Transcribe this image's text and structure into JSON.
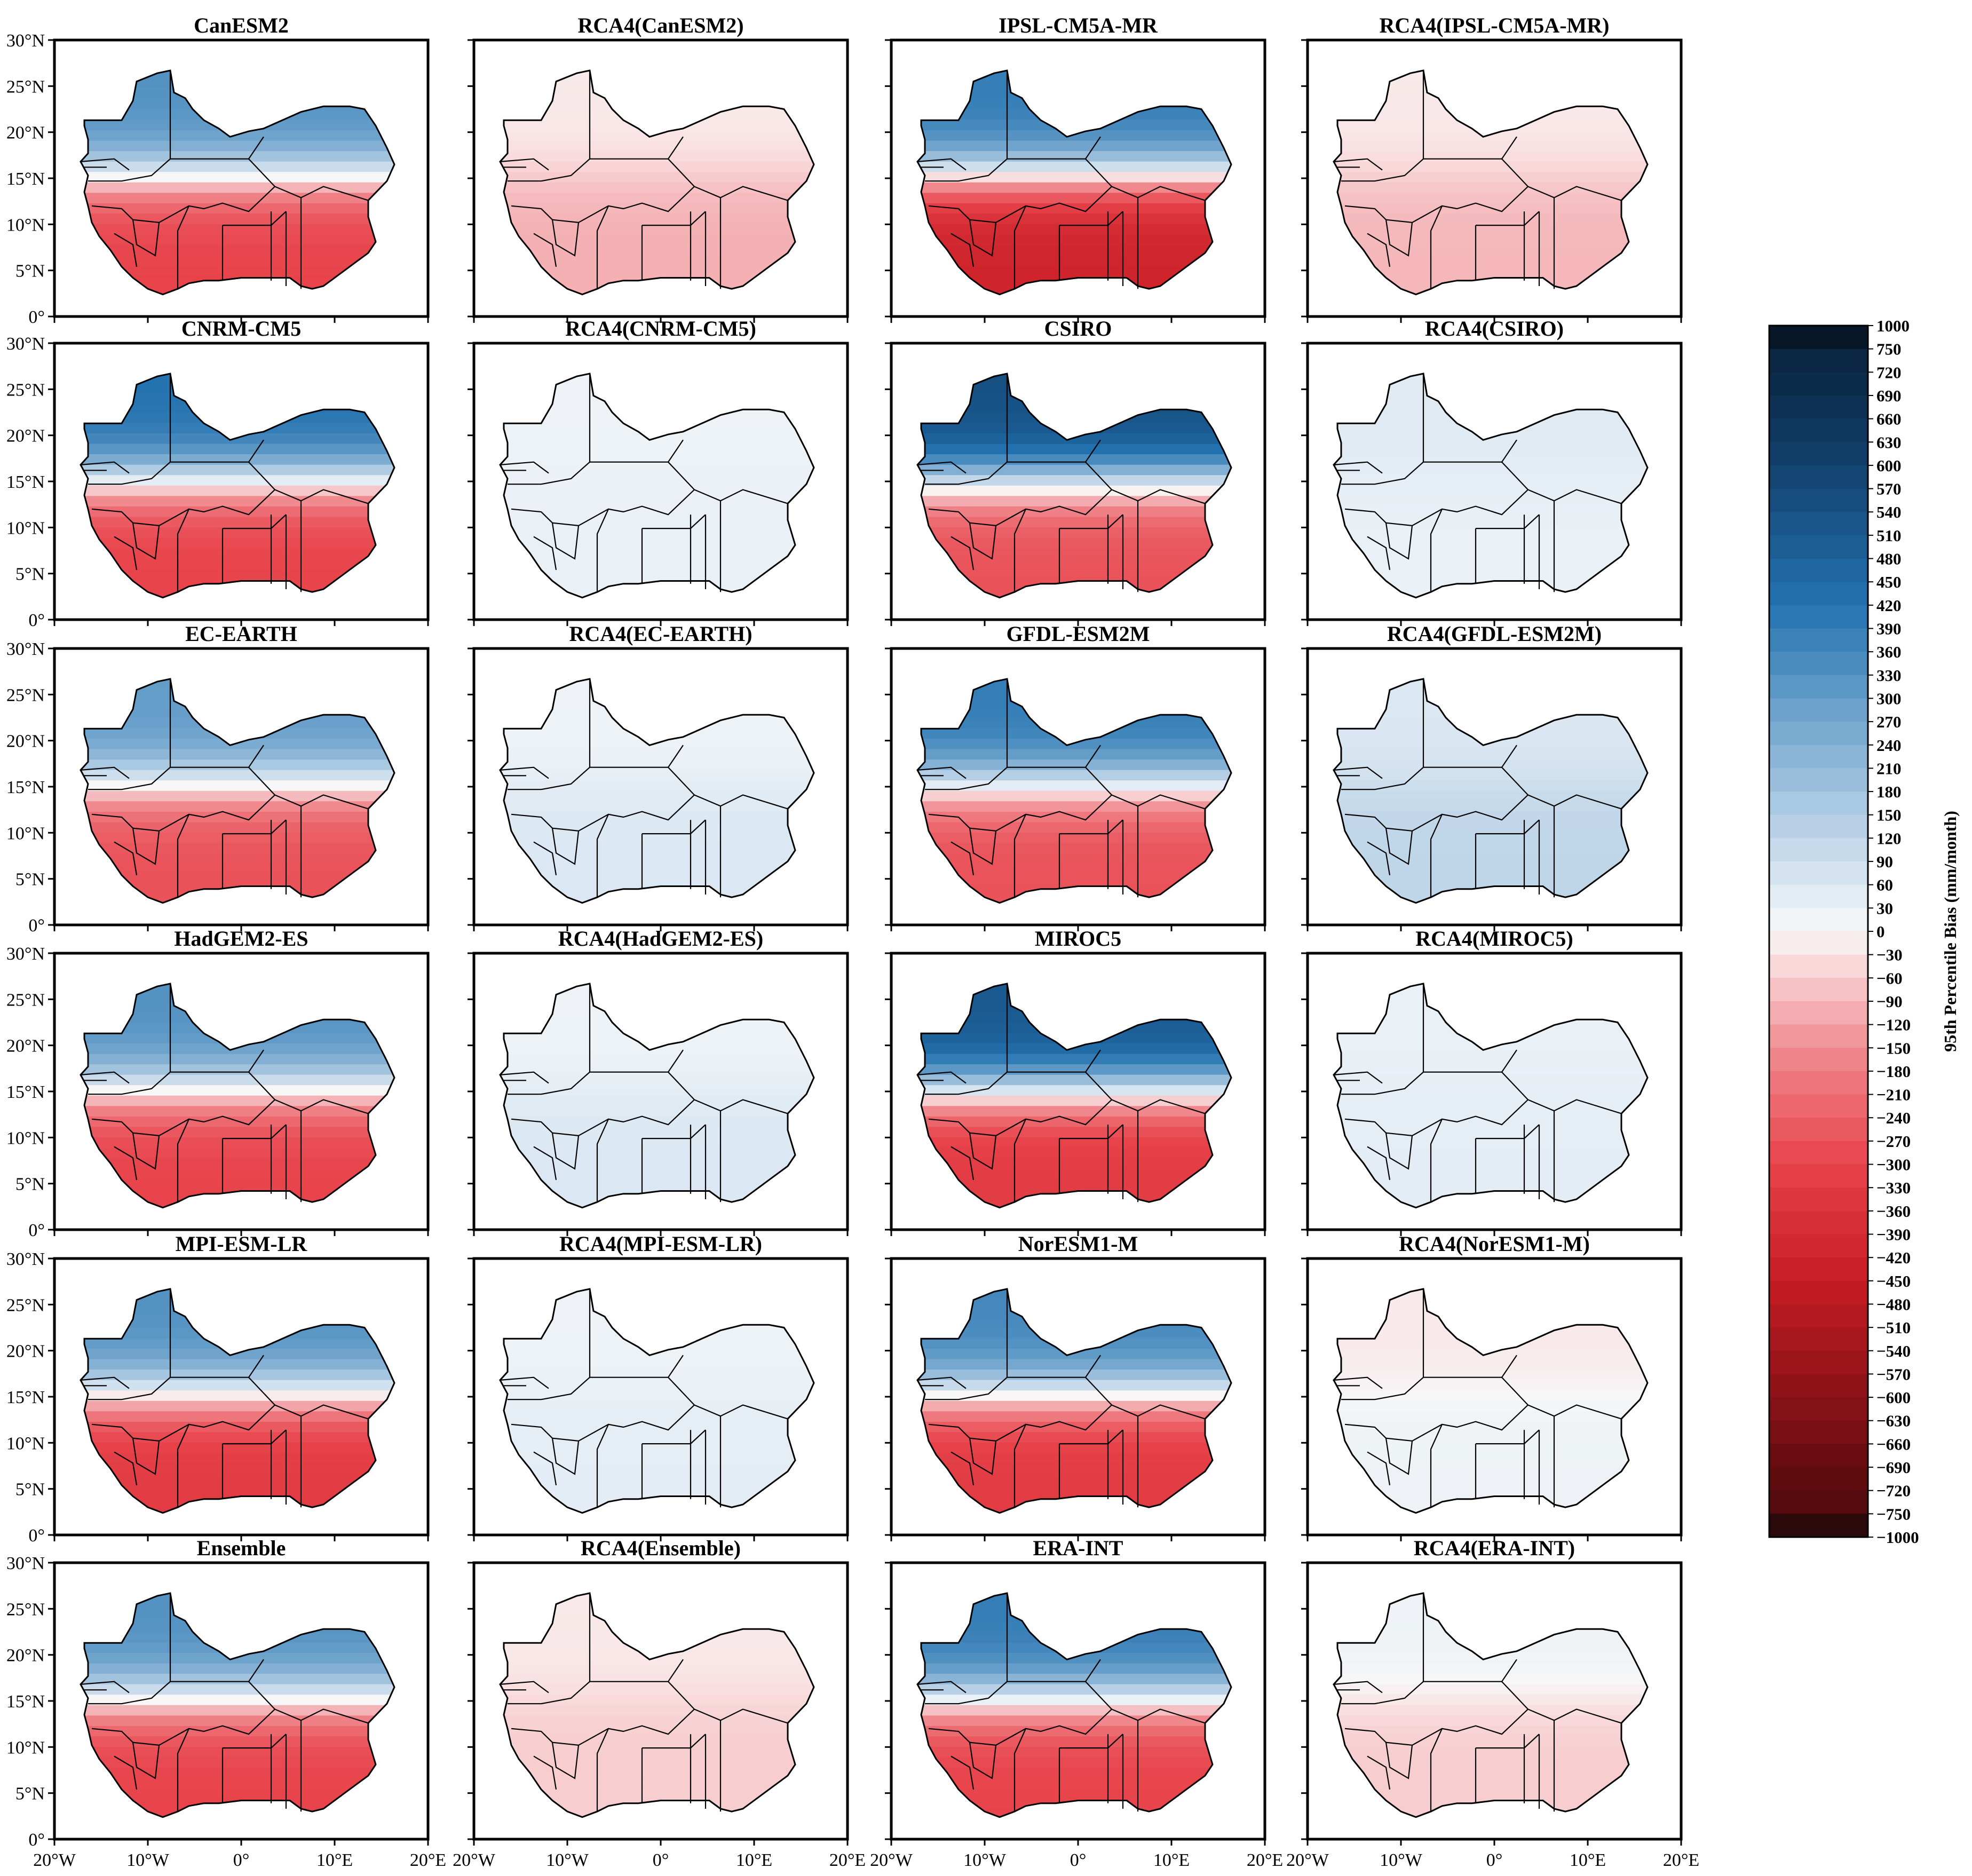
{
  "figure": {
    "panels": [
      [
        "CanESM2",
        "RCA4(CanESM2)",
        "IPSL-CM5A-MR",
        "RCA4(IPSL-CM5A-MR)"
      ],
      [
        "CNRM-CM5",
        "RCA4(CNRM-CM5)",
        "CSIRO",
        "RCA4(CSIRO)"
      ],
      [
        "EC-EARTH",
        "RCA4(EC-EARTH)",
        "GFDL-ESM2M",
        "RCA4(GFDL-ESM2M)"
      ],
      [
        "HadGEM2-ES",
        "RCA4(HadGEM2-ES)",
        "MIROC5",
        "RCA4(MIROC5)"
      ],
      [
        "MPI-ESM-LR",
        "RCA4(MPI-ESM-LR)",
        "NorESM1-M",
        "RCA4(NorESM1-M)"
      ],
      [
        "Ensemble",
        "RCA4(Ensemble)",
        "ERA-INT",
        "RCA4(ERA-INT)"
      ]
    ],
    "lat_ticks": [
      "0°",
      "5°N",
      "10°N",
      "15°N",
      "20°N",
      "25°N",
      "30°N"
    ],
    "lon_ticks": [
      "20°W",
      "10°W",
      "0°",
      "10°E",
      "20°E"
    ],
    "colorbar": {
      "label": "95th Percentile Bias (mm/month)",
      "ticks": [
        "1000",
        "750",
        "720",
        "690",
        "660",
        "630",
        "600",
        "570",
        "540",
        "510",
        "480",
        "450",
        "420",
        "390",
        "360",
        "330",
        "300",
        "270",
        "240",
        "210",
        "180",
        "150",
        "120",
        "90",
        "60",
        "30",
        "0",
        "−30",
        "−60",
        "−90",
        "−120",
        "−150",
        "−180",
        "−210",
        "−240",
        "−270",
        "−300",
        "−330",
        "−360",
        "−390",
        "−420",
        "−450",
        "−480",
        "−510",
        "−540",
        "−570",
        "−600",
        "−630",
        "−660",
        "−690",
        "−720",
        "−750",
        "−1000"
      ],
      "colors": {
        "max": "#050a10",
        "high": "#0e3c66",
        "mid_blue": "#2d7bb6",
        "light_blue": "#c2d9ea",
        "zero": "#f7f7f7",
        "light_red": "#f4c4c6",
        "mid_red": "#e8434b",
        "dark_red": "#6e0e12",
        "min": "#050505"
      }
    },
    "panel_fields": [
      [
        {
          "north": 330,
          "south": -300
        },
        {
          "north": -20,
          "south": -100
        },
        {
          "north": 390,
          "south": -420
        },
        {
          "north": -20,
          "south": -90
        }
      ],
      [
        {
          "north": 420,
          "south": -300
        },
        {
          "north": 20,
          "south": 30
        },
        {
          "north": 540,
          "south": -270
        },
        {
          "north": 50,
          "south": 30
        }
      ],
      [
        {
          "north": 300,
          "south": -270
        },
        {
          "north": 20,
          "south": 60
        },
        {
          "north": 390,
          "south": -270
        },
        {
          "north": 60,
          "south": 120
        }
      ],
      [
        {
          "north": 330,
          "south": -300
        },
        {
          "north": 20,
          "south": 60
        },
        {
          "north": 510,
          "south": -330
        },
        {
          "north": 30,
          "south": 40
        }
      ],
      [
        {
          "north": 330,
          "south": -330
        },
        {
          "north": 20,
          "south": 40
        },
        {
          "north": 360,
          "south": -330
        },
        {
          "north": -20,
          "south": 20
        }
      ],
      [
        {
          "north": 330,
          "south": -300
        },
        {
          "north": -20,
          "south": -60
        },
        {
          "north": 390,
          "south": -300
        },
        {
          "north": 20,
          "south": -60
        }
      ]
    ]
  }
}
